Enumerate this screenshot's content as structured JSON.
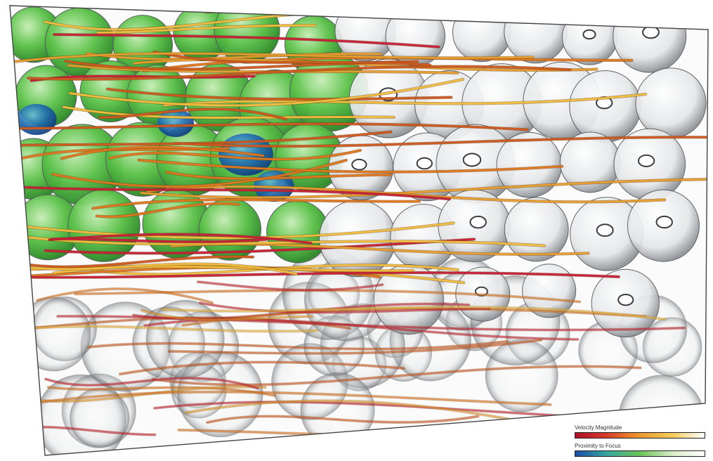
{
  "legends": [
    {
      "title": "Velocity Magnitude",
      "stops": [
        "#b0102a",
        "#d8402a",
        "#f09a30",
        "#f6cc5a",
        "#ffffff"
      ]
    },
    {
      "title": "Proximity to Focus",
      "stops": [
        "#1a4ca8",
        "#3aa8a0",
        "#6cc25a",
        "#d8eec8",
        "#ffffff"
      ]
    }
  ],
  "colors": {
    "sphere_gray": "#e6e8ea",
    "sphere_green": "#5cc24a",
    "sphere_blue": "#1d55a8",
    "streamline_red": "#c8203a",
    "streamline_orange": "#e07820",
    "streamline_yellow": "#f2c040",
    "box_edge": "#444444"
  }
}
